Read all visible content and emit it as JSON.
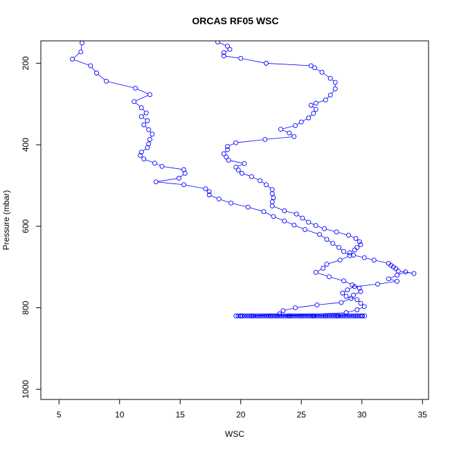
{
  "chart_data": {
    "type": "scatter",
    "title": "ORCAS RF05 WSC",
    "xlabel": "WSC",
    "ylabel": "Pressure (mbar)",
    "xlim": [
      3.5,
      35.5
    ],
    "ylim": [
      1025,
      145
    ],
    "y_axis_reversed": true,
    "x_ticks": [
      5,
      10,
      15,
      20,
      25,
      30,
      35
    ],
    "y_ticks": [
      200,
      400,
      600,
      800,
      1000
    ],
    "grid": false,
    "legend": "none",
    "series": [
      {
        "color": "#0000ff",
        "style": "points-and-lines",
        "points": [
          [
            6.9,
            150
          ],
          [
            6.8,
            172
          ],
          [
            6.1,
            190
          ],
          [
            7.6,
            206
          ],
          [
            8.1,
            224
          ],
          [
            8.9,
            244
          ],
          [
            11.3,
            261
          ],
          [
            12.5,
            277
          ],
          [
            11.2,
            294
          ],
          [
            11.8,
            309
          ],
          [
            12.2,
            322
          ],
          [
            11.8,
            331
          ],
          [
            12.3,
            341
          ],
          [
            12.0,
            351
          ],
          [
            12.4,
            363
          ],
          [
            12.7,
            374
          ],
          [
            12.5,
            387
          ],
          [
            12.4,
            398
          ],
          [
            12.3,
            407
          ],
          [
            11.8,
            418
          ],
          [
            11.7,
            426
          ],
          [
            12.0,
            435
          ],
          [
            12.9,
            445
          ],
          [
            13.5,
            453
          ],
          [
            15.3,
            461
          ],
          [
            15.4,
            470
          ],
          [
            14.9,
            482
          ],
          [
            13.0,
            491
          ],
          [
            15.3,
            498
          ],
          [
            17.1,
            508
          ],
          [
            17.4,
            515
          ],
          [
            17.4,
            523
          ],
          [
            18.2,
            533
          ],
          [
            19.2,
            543
          ],
          [
            20.6,
            553
          ],
          [
            21.9,
            564
          ],
          [
            22.7,
            576
          ],
          [
            23.6,
            587
          ],
          [
            24.4,
            597
          ],
          [
            25.3,
            608
          ],
          [
            26.5,
            620
          ],
          [
            27.1,
            632
          ],
          [
            27.6,
            642
          ],
          [
            28.1,
            652
          ],
          [
            28.5,
            662
          ],
          [
            29.0,
            672
          ],
          [
            28.2,
            683
          ],
          [
            27.1,
            693
          ],
          [
            26.8,
            703
          ],
          [
            26.2,
            713
          ],
          [
            27.3,
            724
          ],
          [
            28.5,
            734
          ],
          [
            29.2,
            744
          ],
          [
            29.8,
            752
          ],
          [
            29.9,
            760
          ],
          [
            29.3,
            769
          ],
          [
            29.1,
            777
          ],
          [
            28.3,
            787
          ],
          [
            26.3,
            793
          ],
          [
            24.5,
            800
          ],
          [
            23.5,
            807
          ],
          [
            23.2,
            815
          ],
          [
            21.0,
            820
          ],
          [
            28.0,
            820
          ],
          [
            20.0,
            820
          ],
          [
            30.0,
            820
          ],
          [
            22.5,
            820
          ],
          [
            26.0,
            820
          ],
          [
            24.0,
            820
          ],
          [
            29.5,
            820
          ],
          [
            25.0,
            820
          ],
          [
            27.0,
            820
          ],
          [
            23.0,
            820
          ],
          [
            28.7,
            812
          ],
          [
            29.6,
            805
          ],
          [
            30.2,
            797
          ],
          [
            29.9,
            789
          ],
          [
            29.6,
            780
          ],
          [
            28.7,
            772
          ],
          [
            28.4,
            764
          ],
          [
            28.8,
            756
          ],
          [
            29.4,
            748
          ],
          [
            31.3,
            742
          ],
          [
            32.9,
            735
          ],
          [
            32.2,
            729
          ],
          [
            32.9,
            720
          ],
          [
            33.6,
            712
          ],
          [
            34.3,
            716
          ],
          [
            33.0,
            710
          ],
          [
            32.8,
            704
          ],
          [
            32.6,
            700
          ],
          [
            32.4,
            696
          ],
          [
            32.2,
            691
          ],
          [
            31.0,
            683
          ],
          [
            30.2,
            677
          ],
          [
            29.3,
            671
          ],
          [
            29.0,
            665
          ],
          [
            29.4,
            658
          ],
          [
            29.6,
            652
          ],
          [
            29.9,
            645
          ],
          [
            29.8,
            638
          ],
          [
            29.5,
            630
          ],
          [
            28.9,
            622
          ],
          [
            27.9,
            614
          ],
          [
            26.9,
            606
          ],
          [
            26.2,
            598
          ],
          [
            25.6,
            590
          ],
          [
            25.1,
            580
          ],
          [
            24.6,
            570
          ],
          [
            23.6,
            562
          ],
          [
            22.6,
            550
          ],
          [
            22.6,
            540
          ],
          [
            22.7,
            530
          ],
          [
            22.6,
            520
          ],
          [
            22.6,
            510
          ],
          [
            22.1,
            498
          ],
          [
            21.6,
            488
          ],
          [
            20.9,
            478
          ],
          [
            20.1,
            470
          ],
          [
            19.8,
            462
          ],
          [
            19.6,
            455
          ],
          [
            20.3,
            446
          ],
          [
            19.0,
            438
          ],
          [
            18.8,
            430
          ],
          [
            18.6,
            422
          ],
          [
            18.9,
            412
          ],
          [
            18.9,
            404
          ],
          [
            19.6,
            395
          ],
          [
            22.0,
            387
          ],
          [
            24.4,
            380
          ],
          [
            24.0,
            371
          ],
          [
            23.3,
            362
          ],
          [
            24.5,
            353
          ],
          [
            25.0,
            344
          ],
          [
            25.6,
            334
          ],
          [
            26.0,
            323
          ],
          [
            26.2,
            313
          ],
          [
            25.8,
            303
          ],
          [
            26.2,
            298
          ],
          [
            27.0,
            290
          ],
          [
            27.4,
            278
          ],
          [
            27.8,
            263
          ],
          [
            27.8,
            247
          ],
          [
            27.4,
            237
          ],
          [
            26.7,
            222
          ],
          [
            26.1,
            211
          ],
          [
            25.8,
            206
          ],
          [
            22.1,
            200
          ],
          [
            20.0,
            188
          ],
          [
            18.6,
            182
          ],
          [
            18.6,
            174
          ],
          [
            19.1,
            166
          ],
          [
            18.9,
            158
          ],
          [
            18.1,
            148
          ]
        ]
      }
    ]
  }
}
